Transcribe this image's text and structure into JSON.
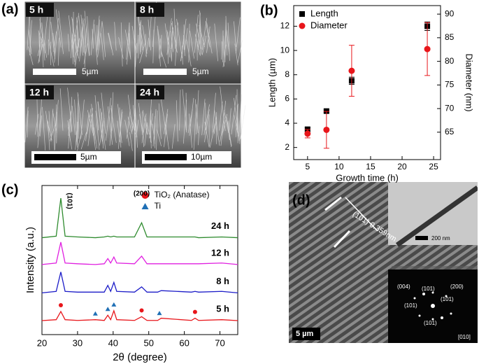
{
  "panels": {
    "a": "(a)",
    "b": "(b)",
    "c": "(c)",
    "d": "(d)"
  },
  "sem_images": [
    {
      "label": "5 h",
      "scale_bar": "5µm"
    },
    {
      "label": "8 h",
      "scale_bar": "5µm"
    },
    {
      "label": "12 h",
      "scale_bar": "5µm"
    },
    {
      "label": "24 h",
      "scale_bar": "10µm"
    }
  ],
  "chart_data": [
    {
      "type": "scatter",
      "x_label": "Growth time (h)",
      "y_label": "Length (µm)",
      "y2_label": "Diameter (nm)",
      "x": [
        5,
        8,
        12,
        24
      ],
      "series": [
        {
          "name": "Length",
          "color": "#000000",
          "marker": "square",
          "values": [
            3.5,
            5,
            7.5,
            12
          ],
          "errors": [
            0.15,
            0.1,
            0.3,
            0.35
          ]
        },
        {
          "name": "Diameter",
          "color": "#e8161b",
          "marker": "circle",
          "axis": "y2",
          "values": [
            64.7,
            65.5,
            78,
            82.6
          ],
          "errors": [
            0.9,
            3.9,
            5.4,
            5.6
          ]
        }
      ],
      "xlim": [
        2.8,
        26.1
      ],
      "xticks": [
        5,
        10,
        15,
        20,
        25
      ],
      "ylim": [
        1,
        13.7
      ],
      "yticks": [
        2,
        4,
        6,
        8,
        10,
        12
      ],
      "y2lim": [
        59.2,
        91.8
      ],
      "y2ticks": [
        65,
        70,
        75,
        80,
        85,
        90
      ],
      "legend": "upper left"
    },
    {
      "type": "line",
      "x_label": "2θ (degree)",
      "y_label": "Intensity (a.u.)",
      "x": [
        20,
        24,
        25.3,
        26.5,
        30,
        35,
        37.5,
        38.5,
        39.3,
        40.2,
        41,
        46,
        48,
        49.5,
        52.5,
        53.5,
        62,
        63,
        64,
        70.5,
        75
      ],
      "series": [
        {
          "name": "24 h",
          "color": "#2e8b2e",
          "values": [
            65,
            66,
            91.5,
            66,
            65.5,
            65,
            65.5,
            66,
            65.5,
            66,
            65.5,
            65.5,
            75,
            65.5,
            65.5,
            65.5,
            65.5,
            65.5,
            65,
            65.5,
            65
          ]
        },
        {
          "name": "12 h",
          "color": "#e020e0",
          "values": [
            47,
            48,
            62,
            48,
            47.5,
            47,
            47.5,
            51,
            48,
            52,
            48,
            47.5,
            52.6,
            47.5,
            47.5,
            47.5,
            47.5,
            47.5,
            47.5,
            48,
            47
          ]
        },
        {
          "name": "8 h",
          "color": "#1c1cc8",
          "values": [
            28,
            29,
            42,
            29,
            28.5,
            28.5,
            28.5,
            33,
            29,
            35,
            29,
            28.5,
            32,
            28.5,
            28.5,
            29.5,
            28.5,
            29,
            28.5,
            29,
            28
          ]
        },
        {
          "name": "5 h",
          "color": "#e8161b",
          "values": [
            9.4,
            10,
            15.5,
            10,
            9.5,
            10,
            9.5,
            13,
            10,
            16,
            10,
            9.5,
            12,
            9.5,
            9.5,
            11,
            9.5,
            11,
            9.5,
            10,
            9.4
          ]
        }
      ],
      "xlim": [
        20,
        75
      ],
      "xticks": [
        20,
        30,
        40,
        50,
        60,
        70
      ],
      "ylim": [
        0,
        100
      ],
      "annotations": [
        {
          "text": "(101)",
          "x": 25.3
        },
        {
          "text": "(200)",
          "x": 48
        }
      ],
      "markers": [
        {
          "name": "TiO₂ (Anatase)",
          "color": "#e8161b",
          "shape": "circle",
          "x": [
            25.3,
            48,
            63
          ]
        },
        {
          "name": "Ti",
          "color": "#1f6fb5",
          "shape": "triangle",
          "x": [
            35,
            38.5,
            40.2,
            53
          ]
        }
      ],
      "legend": "upper right"
    }
  ],
  "tem": {
    "lattice_label": "(101) 0.359nm",
    "inset_scale": "200 nm",
    "scale_bar": "5 µm",
    "fft_labels": [
      "(004)",
      "(101)",
      "(200)",
      "(101)",
      "(101)",
      "(101)"
    ],
    "zone_axis": "[010]"
  }
}
